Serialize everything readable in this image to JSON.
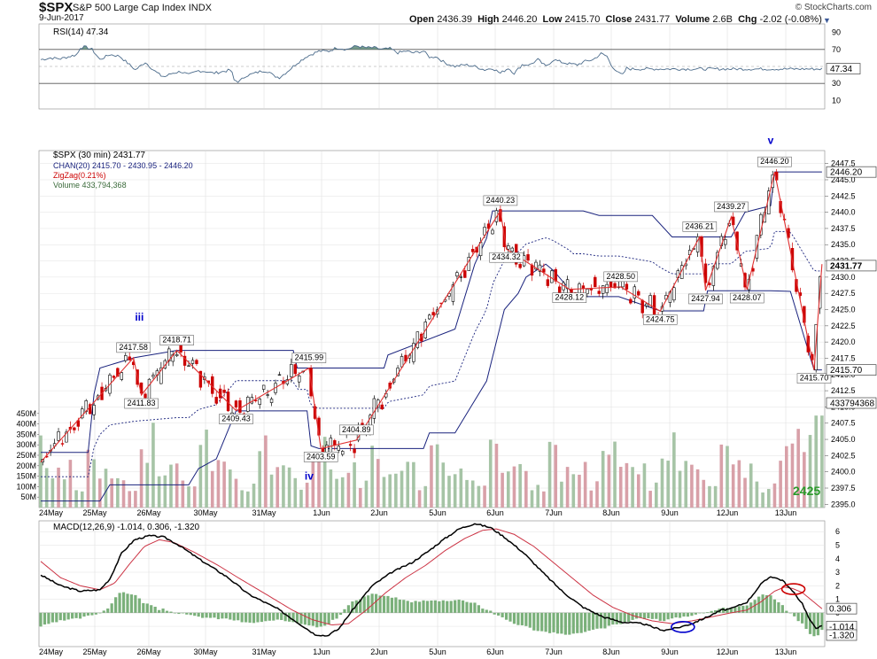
{
  "header": {
    "symbol": "$SPX",
    "name": "S&P 500 Large Cap Index",
    "exchange": "INDX",
    "date": "9-Jun-2017",
    "credit": "© StockCharts.com",
    "open_label": "Open",
    "open": "2436.39",
    "high_label": "High",
    "high": "2446.20",
    "low_label": "Low",
    "low": "2415.70",
    "close_label": "Close",
    "close": "2431.77",
    "volume_label": "Volume",
    "volume": "2.6B",
    "chg_label": "Chg",
    "chg": "-2.02 (-0.08%)"
  },
  "colors": {
    "up": "#000000",
    "down": "#cc0000",
    "zigzag": "#e03030",
    "channel": "#1a237e",
    "rsi_fill": "#5d8a78",
    "vol_up": "#a6c4a6",
    "vol_down": "#d8a0a8",
    "macd": "#000000",
    "signal": "#cc3344",
    "hist": "#7ab07a",
    "wave": "#0000cc",
    "target": "#2a9a2a"
  },
  "chart_data": [
    {
      "type": "line",
      "title": "RSI(14) 47.34",
      "ylim": [
        0,
        100
      ],
      "y_ticks": [
        10,
        30,
        50,
        70,
        90
      ],
      "reference_lines": [
        30,
        70
      ],
      "last_value_label": "47.34",
      "grid": true,
      "anchors": [
        [
          0,
          58
        ],
        [
          10,
          60
        ],
        [
          20,
          59
        ],
        [
          30,
          62
        ],
        [
          37,
          64
        ],
        [
          40,
          72
        ],
        [
          45,
          73
        ],
        [
          52,
          70
        ],
        [
          60,
          58
        ],
        [
          70,
          64
        ],
        [
          80,
          62
        ],
        [
          88,
          54
        ],
        [
          96,
          46
        ],
        [
          106,
          55
        ],
        [
          115,
          45
        ],
        [
          122,
          39
        ],
        [
          126,
          38
        ],
        [
          133,
          42
        ],
        [
          142,
          44
        ],
        [
          150,
          40
        ],
        [
          160,
          45
        ],
        [
          168,
          44
        ],
        [
          175,
          42
        ],
        [
          185,
          44
        ],
        [
          193,
          46
        ],
        [
          196,
          34
        ],
        [
          201,
          32
        ],
        [
          208,
          39
        ],
        [
          217,
          42
        ],
        [
          225,
          45
        ],
        [
          231,
          44
        ],
        [
          236,
          39
        ],
        [
          242,
          37
        ],
        [
          250,
          44
        ],
        [
          260,
          54
        ],
        [
          270,
          62
        ],
        [
          282,
          68
        ],
        [
          292,
          68
        ],
        [
          300,
          72
        ],
        [
          310,
          70
        ],
        [
          320,
          74
        ],
        [
          330,
          72
        ],
        [
          338,
          72
        ],
        [
          346,
          70
        ],
        [
          354,
          71
        ],
        [
          362,
          66
        ],
        [
          370,
          68
        ],
        [
          378,
          66
        ],
        [
          388,
          68
        ],
        [
          395,
          60
        ],
        [
          400,
          62
        ],
        [
          410,
          54
        ],
        [
          420,
          50
        ],
        [
          430,
          52
        ],
        [
          440,
          50
        ],
        [
          450,
          46
        ],
        [
          458,
          48
        ],
        [
          466,
          42
        ],
        [
          474,
          48
        ],
        [
          480,
          42
        ],
        [
          488,
          52
        ],
        [
          496,
          52
        ],
        [
          504,
          58
        ],
        [
          512,
          50
        ],
        [
          520,
          58
        ],
        [
          528,
          55
        ],
        [
          536,
          53
        ],
        [
          544,
          52
        ],
        [
          552,
          56
        ],
        [
          560,
          58
        ],
        [
          568,
          65
        ],
        [
          574,
          62
        ],
        [
          578,
          52
        ],
        [
          582,
          47
        ],
        [
          586,
          42
        ],
        [
          590,
          40
        ],
        [
          594,
          48
        ],
        [
          598,
          47
        ]
      ]
    },
    {
      "type": "line",
      "title": "$SPX (30 min) 2431.77",
      "series": [
        {
          "name": "$SPX (30 min) 2431.77"
        },
        {
          "name": "CHAN(20) 2415.70 - 2430.95 - 2446.20"
        },
        {
          "name": "ZigZag(0.21%)"
        },
        {
          "name": "Volume 433,794,368"
        }
      ],
      "x_ticks": [
        "24May",
        "25May",
        "26May",
        "30May",
        "31May",
        "1Jun",
        "2Jun",
        "5Jun",
        "6Jun",
        "7Jun",
        "8Jun",
        "9Jun",
        "12Jun",
        "13Jun"
      ],
      "ylim": [
        2394.5,
        2449.5
      ],
      "y_ticks": [
        2395.0,
        2397.5,
        2400.0,
        2402.5,
        2405.0,
        2407.5,
        2410.0,
        2412.5,
        2415.0,
        2417.5,
        2420.0,
        2422.5,
        2425.0,
        2427.5,
        2430.0,
        2432.5,
        2435.0,
        2437.5,
        2440.0,
        2442.5,
        2445.0,
        2447.5
      ],
      "volume_ticks": [
        "50M",
        "100M",
        "150M",
        "200M",
        "250M",
        "300M",
        "350M",
        "400M",
        "450M"
      ],
      "volume_ylim": [
        0,
        500
      ],
      "right_badges": [
        "2446.20",
        "2431.77",
        "2415.70",
        "433794368"
      ],
      "zigzag": [
        {
          "x": 0,
          "v": 2401.5,
          "label": ""
        },
        {
          "x": 94,
          "v": 2417.58,
          "label": "2417.58"
        },
        {
          "x": 102,
          "v": 2411.83,
          "label": "2411.83"
        },
        {
          "x": 138,
          "v": 2418.71,
          "label": "2418.71"
        },
        {
          "x": 198,
          "v": 2409.43,
          "label": "2409.43"
        },
        {
          "x": 272,
          "v": 2415.99,
          "label": "2415.99"
        },
        {
          "x": 284,
          "v": 2403.59,
          "label": "2403.59"
        },
        {
          "x": 320,
          "v": 2404.89,
          "label": "2404.89"
        },
        {
          "x": 466,
          "v": 2440.23,
          "label": "2440.23"
        },
        {
          "x": 472,
          "v": 2434.32,
          "label": "2434.32"
        },
        {
          "x": 536,
          "v": 2428.12,
          "label": "2428.12"
        },
        {
          "x": 588,
          "v": 2428.5,
          "label": "2428.50"
        },
        {
          "x": 628,
          "v": 2424.75,
          "label": "2424.75"
        },
        {
          "x": 668,
          "v": 2436.21,
          "label": "2436.21"
        },
        {
          "x": 674,
          "v": 2427.94,
          "label": "2427.94"
        },
        {
          "x": 700,
          "v": 2439.27,
          "label": "2439.27"
        },
        {
          "x": 716,
          "v": 2428.07,
          "label": "2428.07"
        },
        {
          "x": 744,
          "v": 2446.2,
          "label": "2446.20"
        },
        {
          "x": 784,
          "v": 2415.7,
          "label": "2415.70"
        },
        {
          "x": 792,
          "v": 2432.0,
          "label": ""
        }
      ],
      "channel_upper": [
        [
          0,
          2403
        ],
        [
          48,
          2403
        ],
        [
          54,
          2412
        ],
        [
          60,
          2416
        ],
        [
          95,
          2417.6
        ],
        [
          138,
          2418.7
        ],
        [
          256,
          2418.7
        ],
        [
          260,
          2416
        ],
        [
          348,
          2416
        ],
        [
          352,
          2418
        ],
        [
          420,
          2422
        ],
        [
          440,
          2432
        ],
        [
          452,
          2436
        ],
        [
          458,
          2440.2
        ],
        [
          472,
          2440.2
        ],
        [
          550,
          2440.2
        ],
        [
          566,
          2439.5
        ],
        [
          620,
          2439.5
        ],
        [
          640,
          2436.2
        ],
        [
          700,
          2436.2
        ],
        [
          714,
          2440
        ],
        [
          740,
          2441
        ],
        [
          744,
          2446.2
        ],
        [
          792,
          2446.2
        ]
      ],
      "channel_lower": [
        [
          0,
          2395.5
        ],
        [
          60,
          2395.5
        ],
        [
          70,
          2398
        ],
        [
          96,
          2398
        ],
        [
          150,
          2398
        ],
        [
          160,
          2400.5
        ],
        [
          178,
          2402
        ],
        [
          198,
          2409.4
        ],
        [
          270,
          2409.4
        ],
        [
          274,
          2404
        ],
        [
          282,
          2403.6
        ],
        [
          300,
          2403.6
        ],
        [
          388,
          2403.6
        ],
        [
          394,
          2406
        ],
        [
          420,
          2406
        ],
        [
          436,
          2410
        ],
        [
          452,
          2414
        ],
        [
          470,
          2425
        ],
        [
          484,
          2427.5
        ],
        [
          492,
          2430
        ],
        [
          512,
          2432
        ],
        [
          520,
          2431
        ],
        [
          536,
          2428.1
        ],
        [
          540,
          2427
        ],
        [
          586,
          2427
        ],
        [
          628,
          2424.8
        ],
        [
          672,
          2424.8
        ],
        [
          676,
          2427.9
        ],
        [
          740,
          2427.9
        ],
        [
          760,
          2427.8
        ],
        [
          784,
          2415.7
        ],
        [
          792,
          2415.7
        ]
      ],
      "waves": [
        {
          "label": "iii",
          "x": 100,
          "v": 2423.3
        },
        {
          "label": "iv",
          "x": 272,
          "v": 2398.8
        },
        {
          "label": "v",
          "x": 740,
          "v": 2450.5
        }
      ],
      "target_label": "2425"
    },
    {
      "type": "line",
      "title": "MACD(12,26,9) -1.014, 0.306, -1.320",
      "series": [
        {
          "name": "MACD"
        },
        {
          "name": "Signal"
        },
        {
          "name": "Histogram"
        }
      ],
      "ylim": [
        -2.5,
        6.8
      ],
      "y_ticks": [
        -1,
        0,
        1,
        2,
        3,
        4,
        5,
        6
      ],
      "right_badges": [
        "0.306",
        "-1.014",
        "-1.320"
      ],
      "macd_anchors": [
        [
          0,
          2.8
        ],
        [
          20,
          2.0
        ],
        [
          40,
          1.6
        ],
        [
          60,
          1.7
        ],
        [
          70,
          2.5
        ],
        [
          82,
          4.4
        ],
        [
          95,
          5.4
        ],
        [
          110,
          5.7
        ],
        [
          125,
          5.6
        ],
        [
          140,
          5.0
        ],
        [
          160,
          4.0
        ],
        [
          190,
          2.6
        ],
        [
          210,
          1.4
        ],
        [
          240,
          0.3
        ],
        [
          262,
          -0.8
        ],
        [
          278,
          -1.6
        ],
        [
          290,
          -1.7
        ],
        [
          302,
          -1.2
        ],
        [
          316,
          0.2
        ],
        [
          336,
          2.0
        ],
        [
          356,
          3.0
        ],
        [
          376,
          3.7
        ],
        [
          392,
          4.5
        ],
        [
          408,
          5.4
        ],
        [
          424,
          6.2
        ],
        [
          440,
          6.6
        ],
        [
          456,
          6.3
        ],
        [
          470,
          5.6
        ],
        [
          490,
          4.4
        ],
        [
          510,
          2.9
        ],
        [
          530,
          1.5
        ],
        [
          550,
          0.4
        ],
        [
          570,
          -0.3
        ],
        [
          590,
          -0.7
        ],
        [
          610,
          -0.8
        ],
        [
          622,
          -1.1
        ],
        [
          632,
          -1.3
        ],
        [
          646,
          -1.1
        ],
        [
          660,
          -0.8
        ],
        [
          676,
          -0.3
        ],
        [
          690,
          0.2
        ],
        [
          700,
          0.3
        ],
        [
          716,
          0.8
        ],
        [
          730,
          2.1
        ],
        [
          740,
          2.7
        ],
        [
          752,
          2.4
        ],
        [
          762,
          1.6
        ],
        [
          772,
          0.7
        ],
        [
          780,
          -0.6
        ],
        [
          786,
          -1.1
        ],
        [
          792,
          -1.0
        ]
      ],
      "signal_anchors": [
        [
          0,
          3.8
        ],
        [
          20,
          2.6
        ],
        [
          40,
          2.0
        ],
        [
          60,
          1.7
        ],
        [
          75,
          2.2
        ],
        [
          90,
          3.6
        ],
        [
          105,
          4.9
        ],
        [
          120,
          5.4
        ],
        [
          135,
          5.2
        ],
        [
          155,
          4.5
        ],
        [
          180,
          3.5
        ],
        [
          200,
          2.6
        ],
        [
          230,
          1.3
        ],
        [
          255,
          0.2
        ],
        [
          275,
          -0.5
        ],
        [
          295,
          -0.9
        ],
        [
          312,
          -0.8
        ],
        [
          330,
          0.2
        ],
        [
          350,
          1.5
        ],
        [
          370,
          2.6
        ],
        [
          390,
          3.5
        ],
        [
          410,
          4.6
        ],
        [
          430,
          5.5
        ],
        [
          448,
          6.1
        ],
        [
          462,
          6.2
        ],
        [
          480,
          5.8
        ],
        [
          500,
          4.9
        ],
        [
          520,
          3.7
        ],
        [
          540,
          2.5
        ],
        [
          560,
          1.3
        ],
        [
          580,
          0.4
        ],
        [
          600,
          -0.2
        ],
        [
          620,
          -0.6
        ],
        [
          640,
          -0.8
        ],
        [
          660,
          -0.6
        ],
        [
          680,
          -0.3
        ],
        [
          700,
          0.0
        ],
        [
          716,
          0.2
        ],
        [
          730,
          0.8
        ],
        [
          744,
          1.6
        ],
        [
          754,
          1.9
        ],
        [
          762,
          1.8
        ],
        [
          772,
          1.5
        ],
        [
          782,
          0.9
        ],
        [
          792,
          0.3
        ]
      ],
      "annotations": [
        {
          "shape": "ellipse",
          "x": 651,
          "v": -1.05,
          "color": "#0000cc"
        },
        {
          "shape": "ellipse",
          "x": 763,
          "v": 1.75,
          "color": "#cc0000"
        }
      ]
    }
  ]
}
